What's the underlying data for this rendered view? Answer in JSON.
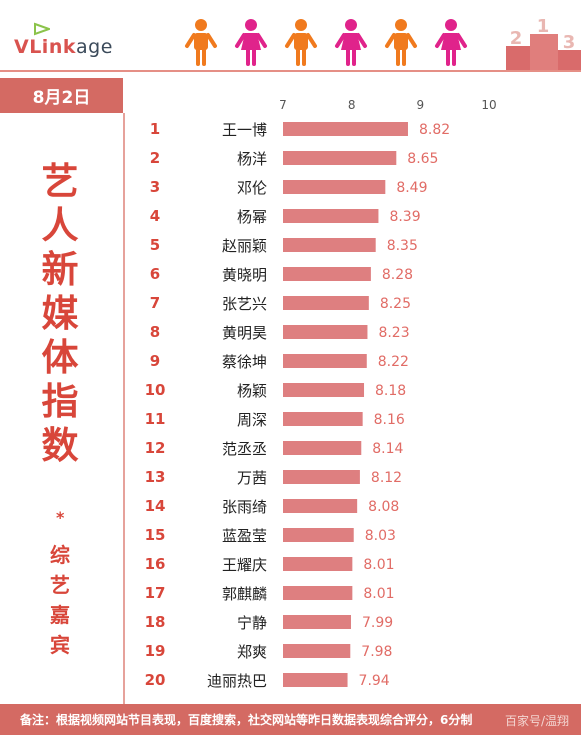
{
  "logo": {
    "text_a": "VLink",
    "text_b": "age"
  },
  "header": {
    "podium_labels": [
      "2",
      "1",
      "3"
    ],
    "people_colors": [
      "#f07a1e",
      "#e0238b",
      "#f07a1e",
      "#e0238b",
      "#f07a1e",
      "#e0238b"
    ]
  },
  "date": "8月2日",
  "title_chars": [
    "艺",
    "人",
    "新",
    "媒",
    "体",
    "指",
    "数"
  ],
  "title_star": "*",
  "subtitle_chars": [
    "综",
    "艺",
    "嘉",
    "宾"
  ],
  "footer_note": "备注：根据视频网站节目表现，百度搜索，社交网站等昨日数据表现综合评分，6分制",
  "watermark": "百家号/温翔",
  "colors": {
    "bar": "#de7f80",
    "accent": "#d46a63",
    "text_red": "#d8463a",
    "value_text": "#e16c66"
  },
  "chart_data": {
    "type": "bar",
    "orientation": "horizontal",
    "xlim": [
      7,
      10
    ],
    "ticks": [
      "7",
      "8",
      "9",
      "10"
    ],
    "ranks": [
      "1",
      "2",
      "3",
      "4",
      "5",
      "6",
      "7",
      "8",
      "9",
      "10",
      "11",
      "12",
      "13",
      "14",
      "15",
      "16",
      "17",
      "18",
      "19",
      "20"
    ],
    "categories": [
      "王一博",
      "杨洋",
      "邓伦",
      "杨幂",
      "赵丽颖",
      "黄晓明",
      "张艺兴",
      "黄明昊",
      "蔡徐坤",
      "杨颖",
      "周深",
      "范丞丞",
      "万茜",
      "张雨绮",
      "蓝盈莹",
      "王耀庆",
      "郭麒麟",
      "宁静",
      "郑爽",
      "迪丽热巴"
    ],
    "values": [
      8.82,
      8.65,
      8.49,
      8.39,
      8.35,
      8.28,
      8.25,
      8.23,
      8.22,
      8.18,
      8.16,
      8.14,
      8.12,
      8.08,
      8.03,
      8.01,
      8.01,
      7.99,
      7.98,
      7.94
    ],
    "value_labels": [
      "8.82",
      "8.65",
      "8.49",
      "8.39",
      "8.35",
      "8.28",
      "8.25",
      "8.23",
      "8.22",
      "8.18",
      "8.16",
      "8.14",
      "8.12",
      "8.08",
      "8.03",
      "8.01",
      "8.01",
      "7.99",
      "7.98",
      "7.94"
    ]
  }
}
